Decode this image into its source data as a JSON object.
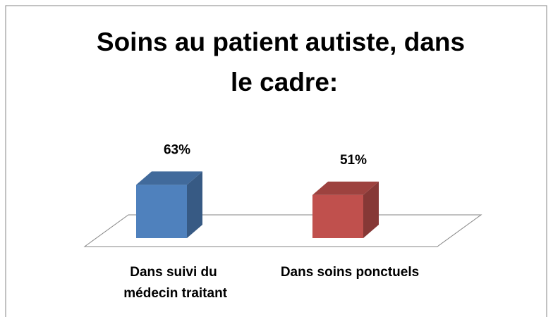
{
  "chart_data": {
    "type": "bar3d",
    "title": "Soins au patient autiste, dans le cadre:",
    "categories": [
      "Dans suivi du médecin traitant",
      "Dans soins ponctuels"
    ],
    "values": [
      63,
      51
    ],
    "value_labels": [
      "63%",
      "51%"
    ],
    "colors": [
      "#4f81bd",
      "#c0504d"
    ]
  }
}
